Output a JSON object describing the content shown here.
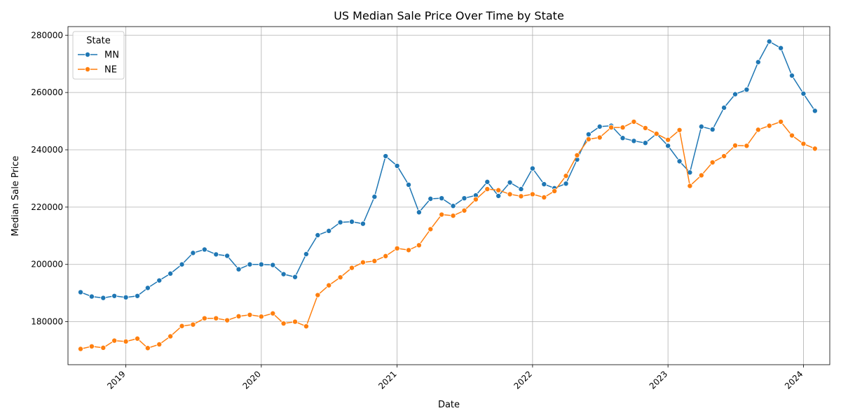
{
  "chart_data": {
    "type": "line",
    "title": "US Median Sale Price Over Time by State",
    "xlabel": "Date",
    "ylabel": "Median Sale Price",
    "x": [
      "2018-09",
      "2018-10",
      "2018-11",
      "2018-12",
      "2019-01",
      "2019-02",
      "2019-03",
      "2019-04",
      "2019-05",
      "2019-06",
      "2019-07",
      "2019-08",
      "2019-09",
      "2019-10",
      "2019-11",
      "2019-12",
      "2020-01",
      "2020-02",
      "2020-03",
      "2020-04",
      "2020-05",
      "2020-06",
      "2020-07",
      "2020-08",
      "2020-09",
      "2020-10",
      "2020-11",
      "2020-12",
      "2021-01",
      "2021-02",
      "2021-03",
      "2021-04",
      "2021-05",
      "2021-06",
      "2021-07",
      "2021-08",
      "2021-09",
      "2021-10",
      "2021-11",
      "2021-12",
      "2022-01",
      "2022-02",
      "2022-03",
      "2022-04",
      "2022-05",
      "2022-06",
      "2022-07",
      "2022-08",
      "2022-09",
      "2022-10",
      "2022-11",
      "2022-12",
      "2023-01",
      "2023-02",
      "2023-03",
      "2023-04",
      "2023-05",
      "2023-06",
      "2023-07",
      "2023-08",
      "2023-09",
      "2023-10",
      "2023-11",
      "2023-12",
      "2024-01",
      "2024-02"
    ],
    "series": [
      {
        "name": "MN",
        "color": "#1f77b4",
        "values": [
          190300,
          188800,
          188300,
          189000,
          188500,
          189000,
          191800,
          194400,
          196800,
          200000,
          204000,
          205200,
          203500,
          203000,
          198300,
          200000,
          200000,
          199800,
          196600,
          195600,
          203600,
          210200,
          211700,
          214700,
          214900,
          214200,
          223600,
          237800,
          234400,
          227800,
          218200,
          222900,
          223100,
          220400,
          223100,
          224100,
          228800,
          223900,
          228600,
          226300,
          233500,
          228000,
          226600,
          228200,
          236600,
          245400,
          248100,
          248400,
          244100,
          243100,
          242400,
          245600,
          241400,
          236000,
          232100,
          248100,
          247100,
          254700,
          259400,
          261000,
          270600,
          277800,
          275500,
          265900,
          259600,
          253600
        ]
      },
      {
        "name": "NE",
        "color": "#ff7f0e",
        "values": [
          170500,
          171400,
          170900,
          173400,
          173100,
          174100,
          170800,
          172100,
          174900,
          178500,
          179000,
          181200,
          181200,
          180500,
          181900,
          182400,
          181800,
          182900,
          179400,
          180000,
          178400,
          189300,
          192700,
          195500,
          198800,
          200700,
          201200,
          202900,
          205600,
          205000,
          206700,
          212300,
          217400,
          217000,
          218800,
          222700,
          226300,
          225900,
          224500,
          223800,
          224500,
          223400,
          225600,
          230900,
          238100,
          243700,
          244300,
          247800,
          247800,
          249800,
          247600,
          245600,
          243500,
          246900,
          227400,
          231100,
          235600,
          237800,
          241500,
          241400,
          247000,
          248400,
          249800,
          245000,
          242100,
          240400
        ]
      }
    ],
    "xticks": [
      "2019",
      "2020",
      "2021",
      "2022",
      "2023",
      "2024"
    ],
    "yticks": [
      180000,
      200000,
      220000,
      240000,
      260000,
      280000
    ],
    "ylim": [
      165000,
      283000
    ],
    "xlim": [
      "2018-07-29",
      "2024-03-12"
    ],
    "grid": true,
    "legend": {
      "title": "State",
      "placement": "upper-left"
    }
  }
}
